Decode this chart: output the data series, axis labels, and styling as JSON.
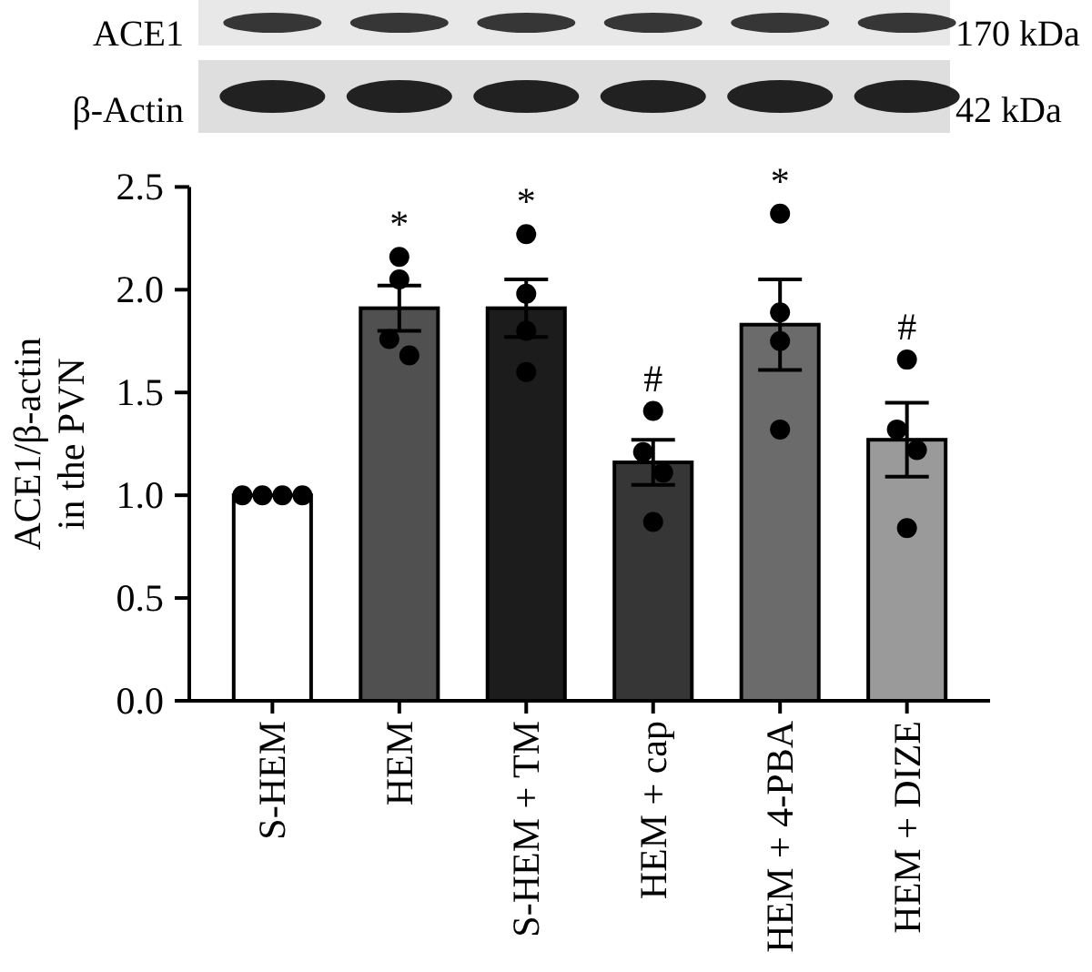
{
  "chart_data": {
    "type": "bar",
    "categories": [
      "S-HEM",
      "HEM",
      "S-HEM + TM",
      "HEM + cap",
      "HEM + 4-PBA",
      "HEM + DIZE"
    ],
    "series": [
      {
        "colors": [
          "#ffffff",
          "#505050",
          "#1c1c1c",
          "#363636",
          "#6b6b6b",
          "#9a9a9a"
        ],
        "values": [
          1.0,
          1.91,
          1.91,
          1.16,
          1.83,
          1.27
        ],
        "errors": [
          null,
          0.11,
          0.14,
          0.11,
          0.22,
          0.18
        ]
      },
      {
        "type": "scatter",
        "color": "#000000",
        "x": [
          "S-HEM",
          "S-HEM",
          "S-HEM",
          "S-HEM",
          "HEM",
          "HEM",
          "HEM",
          "HEM",
          "S-HEM + TM",
          "S-HEM + TM",
          "S-HEM + TM",
          "S-HEM + TM",
          "HEM + cap",
          "HEM + cap",
          "HEM + cap",
          "HEM + cap",
          "HEM + 4-PBA",
          "HEM + 4-PBA",
          "HEM + 4-PBA",
          "HEM + 4-PBA",
          "HEM + DIZE",
          "HEM + DIZE",
          "HEM + DIZE",
          "HEM + DIZE"
        ],
        "values": [
          1.0,
          1.0,
          1.0,
          1.0,
          2.16,
          2.05,
          1.76,
          1.68,
          2.27,
          1.98,
          1.8,
          1.6,
          1.41,
          1.21,
          1.11,
          0.87,
          2.37,
          1.89,
          1.75,
          1.32,
          1.66,
          1.32,
          1.22,
          0.84
        ]
      }
    ],
    "ylabel": "ACE1/β-actin\nin the PVN",
    "ylim": [
      0,
      2.5
    ],
    "yticks": [
      {
        "value": 0,
        "label": "0.0"
      },
      0.5,
      {
        "value": 1,
        "label": "1.0"
      },
      1.5,
      {
        "value": 2,
        "label": "2.0"
      },
      2.5
    ],
    "marker": "circle",
    "annotations": [
      "ACE1",
      "170 kDa",
      "β-Actin",
      "42 kDa",
      "*",
      "*",
      "#",
      "*",
      "#"
    ]
  }
}
